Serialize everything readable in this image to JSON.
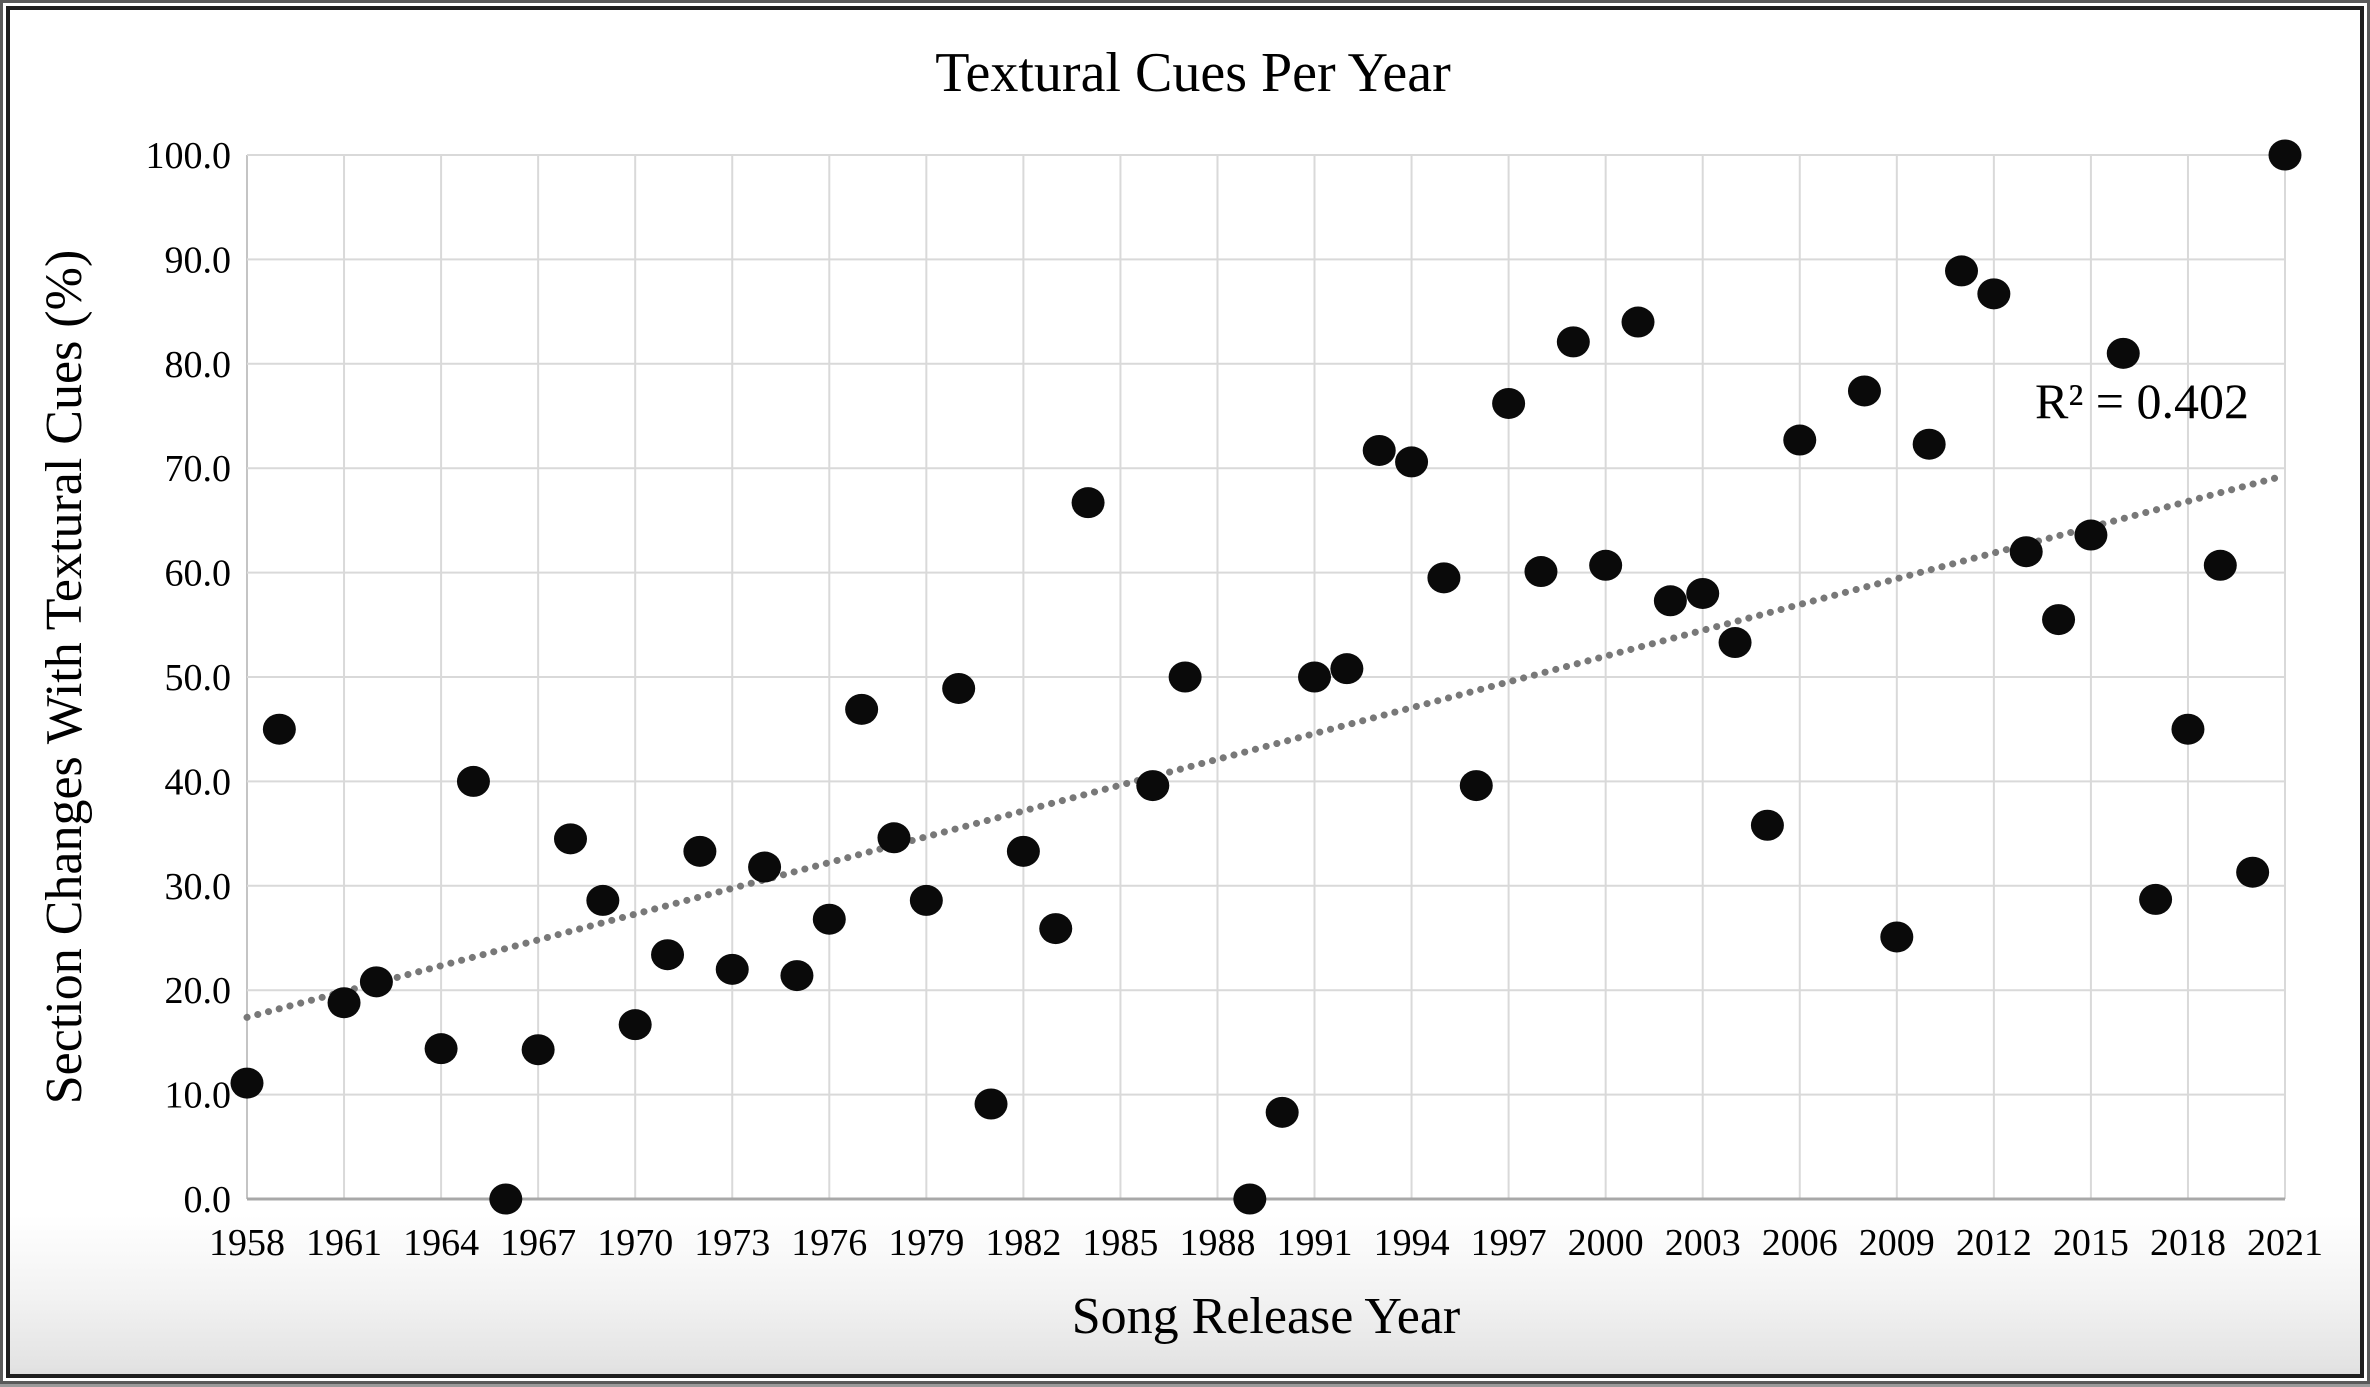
{
  "figure": {
    "background": "#ffffff",
    "frame_color": "#1e1e1e"
  },
  "chart_data": {
    "type": "scatter",
    "title": "Textural Cues Per Year",
    "xlabel": "Song Release Year",
    "ylabel": "Section Changes With Textural Cues (%)",
    "annotation": {
      "text": "R² = 0.402",
      "r_squared": 0.402,
      "x": 2016.6,
      "y": 75
    },
    "xlim": [
      1958,
      2021
    ],
    "ylim": [
      0,
      100
    ],
    "grid": true,
    "legend": "none",
    "x_ticks": [
      1958,
      1961,
      1964,
      1967,
      1970,
      1973,
      1976,
      1979,
      1982,
      1985,
      1988,
      1991,
      1994,
      1997,
      2000,
      2003,
      2006,
      2009,
      2012,
      2015,
      2018,
      2021
    ],
    "x_tick_labels": [
      "1958",
      "1961",
      "1964",
      "1967",
      "1970",
      "1973",
      "1976",
      "1979",
      "1982",
      "1985",
      "1988",
      "1991",
      "1994",
      "1997",
      "2000",
      "2003",
      "2006",
      "2009",
      "2012",
      "2015",
      "2018",
      "2021"
    ],
    "y_ticks": [
      100,
      90,
      80,
      70,
      60,
      50,
      40,
      30,
      20,
      10,
      0
    ],
    "y_tick_labels": [
      "100.0",
      "90.0",
      "80.0",
      "70.0",
      "60.0",
      "50.0",
      "40.0",
      "30.0",
      "20.0",
      "10.0",
      "0.0"
    ],
    "series": [
      {
        "name": "section-changes-with-textural-cues",
        "marker": "circle",
        "color": "#0a0a0a",
        "points": [
          [
            1958,
            11.1
          ],
          [
            1959,
            45.0
          ],
          [
            1961,
            18.8
          ],
          [
            1962,
            20.8
          ],
          [
            1964,
            14.4
          ],
          [
            1965,
            40.0
          ],
          [
            1966,
            0.0
          ],
          [
            1967,
            14.3
          ],
          [
            1968,
            34.5
          ],
          [
            1969,
            28.6
          ],
          [
            1970,
            16.7
          ],
          [
            1971,
            23.4
          ],
          [
            1972,
            33.3
          ],
          [
            1973,
            22.0
          ],
          [
            1974,
            31.8
          ],
          [
            1975,
            21.4
          ],
          [
            1976,
            26.8
          ],
          [
            1977,
            46.9
          ],
          [
            1978,
            34.6
          ],
          [
            1979,
            28.6
          ],
          [
            1980,
            48.9
          ],
          [
            1981,
            9.1
          ],
          [
            1982,
            33.3
          ],
          [
            1983,
            25.9
          ],
          [
            1984,
            66.7
          ],
          [
            1986,
            39.6
          ],
          [
            1987,
            50.0
          ],
          [
            1989,
            0.0
          ],
          [
            1990,
            8.3
          ],
          [
            1991,
            50.0
          ],
          [
            1992,
            50.8
          ],
          [
            1993,
            71.7
          ],
          [
            1994,
            70.6
          ],
          [
            1995,
            59.5
          ],
          [
            1996,
            39.6
          ],
          [
            1997,
            76.2
          ],
          [
            1998,
            60.1
          ],
          [
            1999,
            82.1
          ],
          [
            2000,
            60.7
          ],
          [
            2001,
            84.0
          ],
          [
            2002,
            57.3
          ],
          [
            2003,
            58.0
          ],
          [
            2004,
            53.3
          ],
          [
            2005,
            35.8
          ],
          [
            2006,
            72.7
          ],
          [
            2008,
            77.4
          ],
          [
            2009,
            25.1
          ],
          [
            2010,
            72.3
          ],
          [
            2011,
            88.9
          ],
          [
            2012,
            86.7
          ],
          [
            2013,
            62.0
          ],
          [
            2014,
            55.5
          ],
          [
            2015,
            63.6
          ],
          [
            2016,
            81.0
          ],
          [
            2017,
            28.7
          ],
          [
            2018,
            45.0
          ],
          [
            2019,
            60.7
          ],
          [
            2020,
            31.3
          ],
          [
            2021,
            100.0
          ]
        ]
      }
    ],
    "trendline": {
      "type": "linear",
      "style": "dotted",
      "color": "#787878",
      "x_start": 1958,
      "y_start": 17.4,
      "x_end": 2021,
      "y_end": 69.3
    }
  }
}
